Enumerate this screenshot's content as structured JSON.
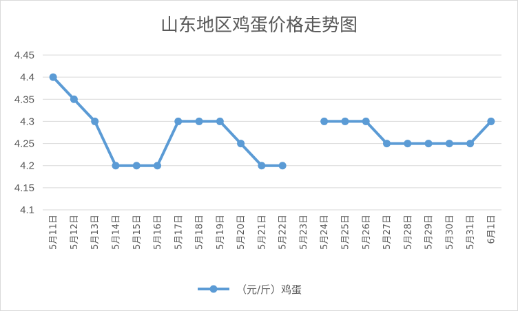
{
  "chart_data": {
    "type": "line",
    "title": "山东地区鸡蛋价格走势图",
    "xlabel": "",
    "ylabel": "",
    "categories": [
      "5月11日",
      "5月12日",
      "5月13日",
      "5月14日",
      "5月15日",
      "5月16日",
      "5月17日",
      "5月18日",
      "5月19日",
      "5月20日",
      "5月21日",
      "5月22日",
      "5月23日",
      "5月24日",
      "5月25日",
      "5月26日",
      "5月27日",
      "5月28日",
      "5月29日",
      "5月30日",
      "5月31日",
      "6月1日"
    ],
    "series": [
      {
        "name": "（元/斤）鸡蛋",
        "values": [
          4.4,
          4.35,
          4.3,
          4.2,
          4.2,
          4.2,
          4.3,
          4.3,
          4.3,
          4.25,
          4.2,
          4.2,
          null,
          4.3,
          4.3,
          4.3,
          4.25,
          4.25,
          4.25,
          4.25,
          4.25,
          4.3
        ]
      }
    ],
    "ylim": [
      4.1,
      4.45
    ],
    "yticks": [
      "4.1",
      "4.15",
      "4.2",
      "4.25",
      "4.3",
      "4.35",
      "4.4",
      "4.45"
    ],
    "grid": true,
    "legend": "bottom",
    "colors": {
      "series": "#5b9bd5",
      "grid": "#d9d9d9",
      "text": "#595959"
    }
  }
}
